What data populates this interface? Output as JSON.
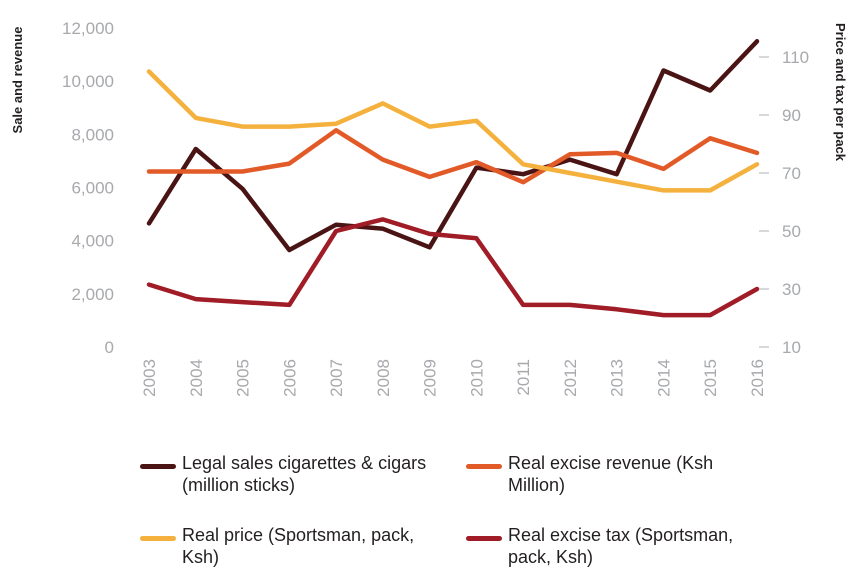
{
  "chart_data": {
    "type": "line",
    "x": [
      "2003",
      "2004",
      "2005",
      "2006",
      "2007",
      "2008",
      "2009",
      "2010",
      "2011",
      "2012",
      "2013",
      "2014",
      "2015",
      "2016"
    ],
    "left_axis": {
      "label": "Sale and revenue",
      "range": [
        0,
        12000
      ],
      "ticks": [
        "0",
        "2,000",
        "4,000",
        "6,000",
        "8,000",
        "10,000",
        "12,000"
      ],
      "tick_values": [
        0,
        2000,
        4000,
        6000,
        8000,
        10000,
        12000
      ]
    },
    "right_axis": {
      "label": "Price and tax per pack",
      "range": [
        10,
        120
      ],
      "ticks": [
        "10",
        "30",
        "50",
        "70",
        "90",
        "110"
      ],
      "tick_values": [
        10,
        30,
        50,
        70,
        90,
        110
      ]
    },
    "grid": false,
    "legend_position": "bottom",
    "series": [
      {
        "name": "Legal sales cigarettes & cigars (million sticks)",
        "axis": "left",
        "color": "#4a1414",
        "values": [
          4650,
          7450,
          5950,
          3650,
          4600,
          4450,
          3750,
          6750,
          6500,
          7050,
          6500,
          10400,
          9650,
          11500
        ]
      },
      {
        "name": "Real excise revenue (Ksh Million)",
        "axis": "left",
        "color": "#e25a27",
        "values": [
          6600,
          6600,
          6600,
          6900,
          8150,
          7050,
          6400,
          6950,
          6200,
          7250,
          7300,
          6700,
          7850,
          7300
        ]
      },
      {
        "name": "Real price (Sportsman, pack, Ksh)",
        "axis": "right",
        "color": "#f5b13d",
        "values": [
          105,
          89,
          86,
          86,
          87,
          94,
          86,
          88,
          73,
          70,
          67,
          64,
          64,
          73
        ]
      },
      {
        "name": "Real excise tax (Sportsman, pack, Ksh)",
        "axis": "right",
        "color": "#a01c26",
        "values": [
          31.5,
          26.5,
          25.5,
          24.5,
          50,
          54,
          49,
          47.5,
          24.5,
          24.5,
          23,
          21,
          21,
          30
        ]
      }
    ]
  }
}
